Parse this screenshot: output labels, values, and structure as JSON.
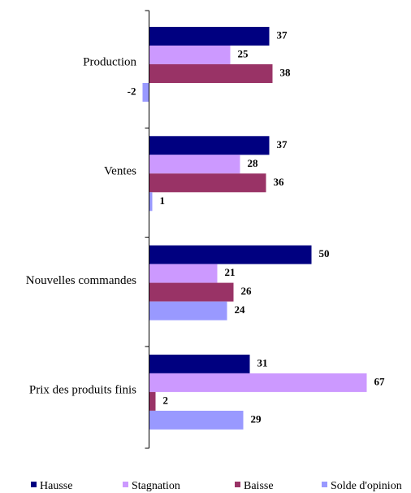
{
  "chart_data": {
    "type": "bar",
    "orientation": "horizontal",
    "title": "",
    "xlabel": "",
    "ylabel": "",
    "categories": [
      "Production",
      "Ventes",
      "Nouvelles commandes",
      "Prix des produits finis"
    ],
    "series": [
      {
        "name": "Hausse",
        "color": "#000080",
        "values": [
          37,
          37,
          50,
          31
        ]
      },
      {
        "name": "Stagnation",
        "color": "#cc99ff",
        "values": [
          25,
          28,
          21,
          67
        ]
      },
      {
        "name": "Baisse",
        "color": "#993366",
        "values": [
          38,
          36,
          26,
          2
        ]
      },
      {
        "name": "Solde d'opinion",
        "color": "#9999ff",
        "values": [
          -2,
          1,
          24,
          29
        ]
      }
    ],
    "xlim": [
      -2,
      80
    ],
    "grid": false,
    "legend_position": "bottom"
  }
}
